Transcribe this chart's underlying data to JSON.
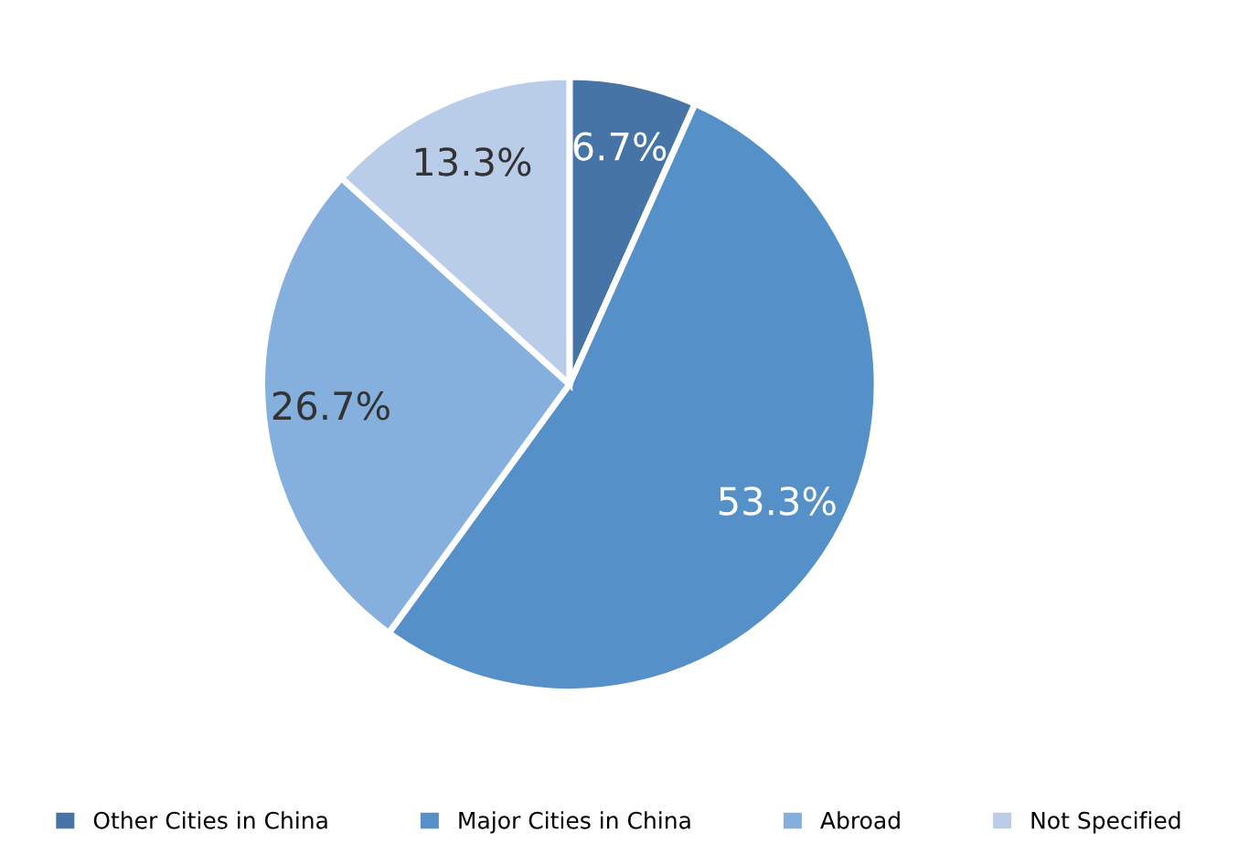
{
  "chart_data": {
    "type": "pie",
    "categories": [
      "Other Cities in China",
      "Major Cities in China",
      "Abroad",
      "Not Specified"
    ],
    "values": [
      6.7,
      53.3,
      26.7,
      13.3
    ],
    "colors": [
      "#4674a6",
      "#5590c8",
      "#85afdc",
      "#b9cce8"
    ],
    "value_labels": [
      "6.7%",
      "53.3%",
      "26.7%",
      "13.3%"
    ],
    "legend": "bottom"
  }
}
